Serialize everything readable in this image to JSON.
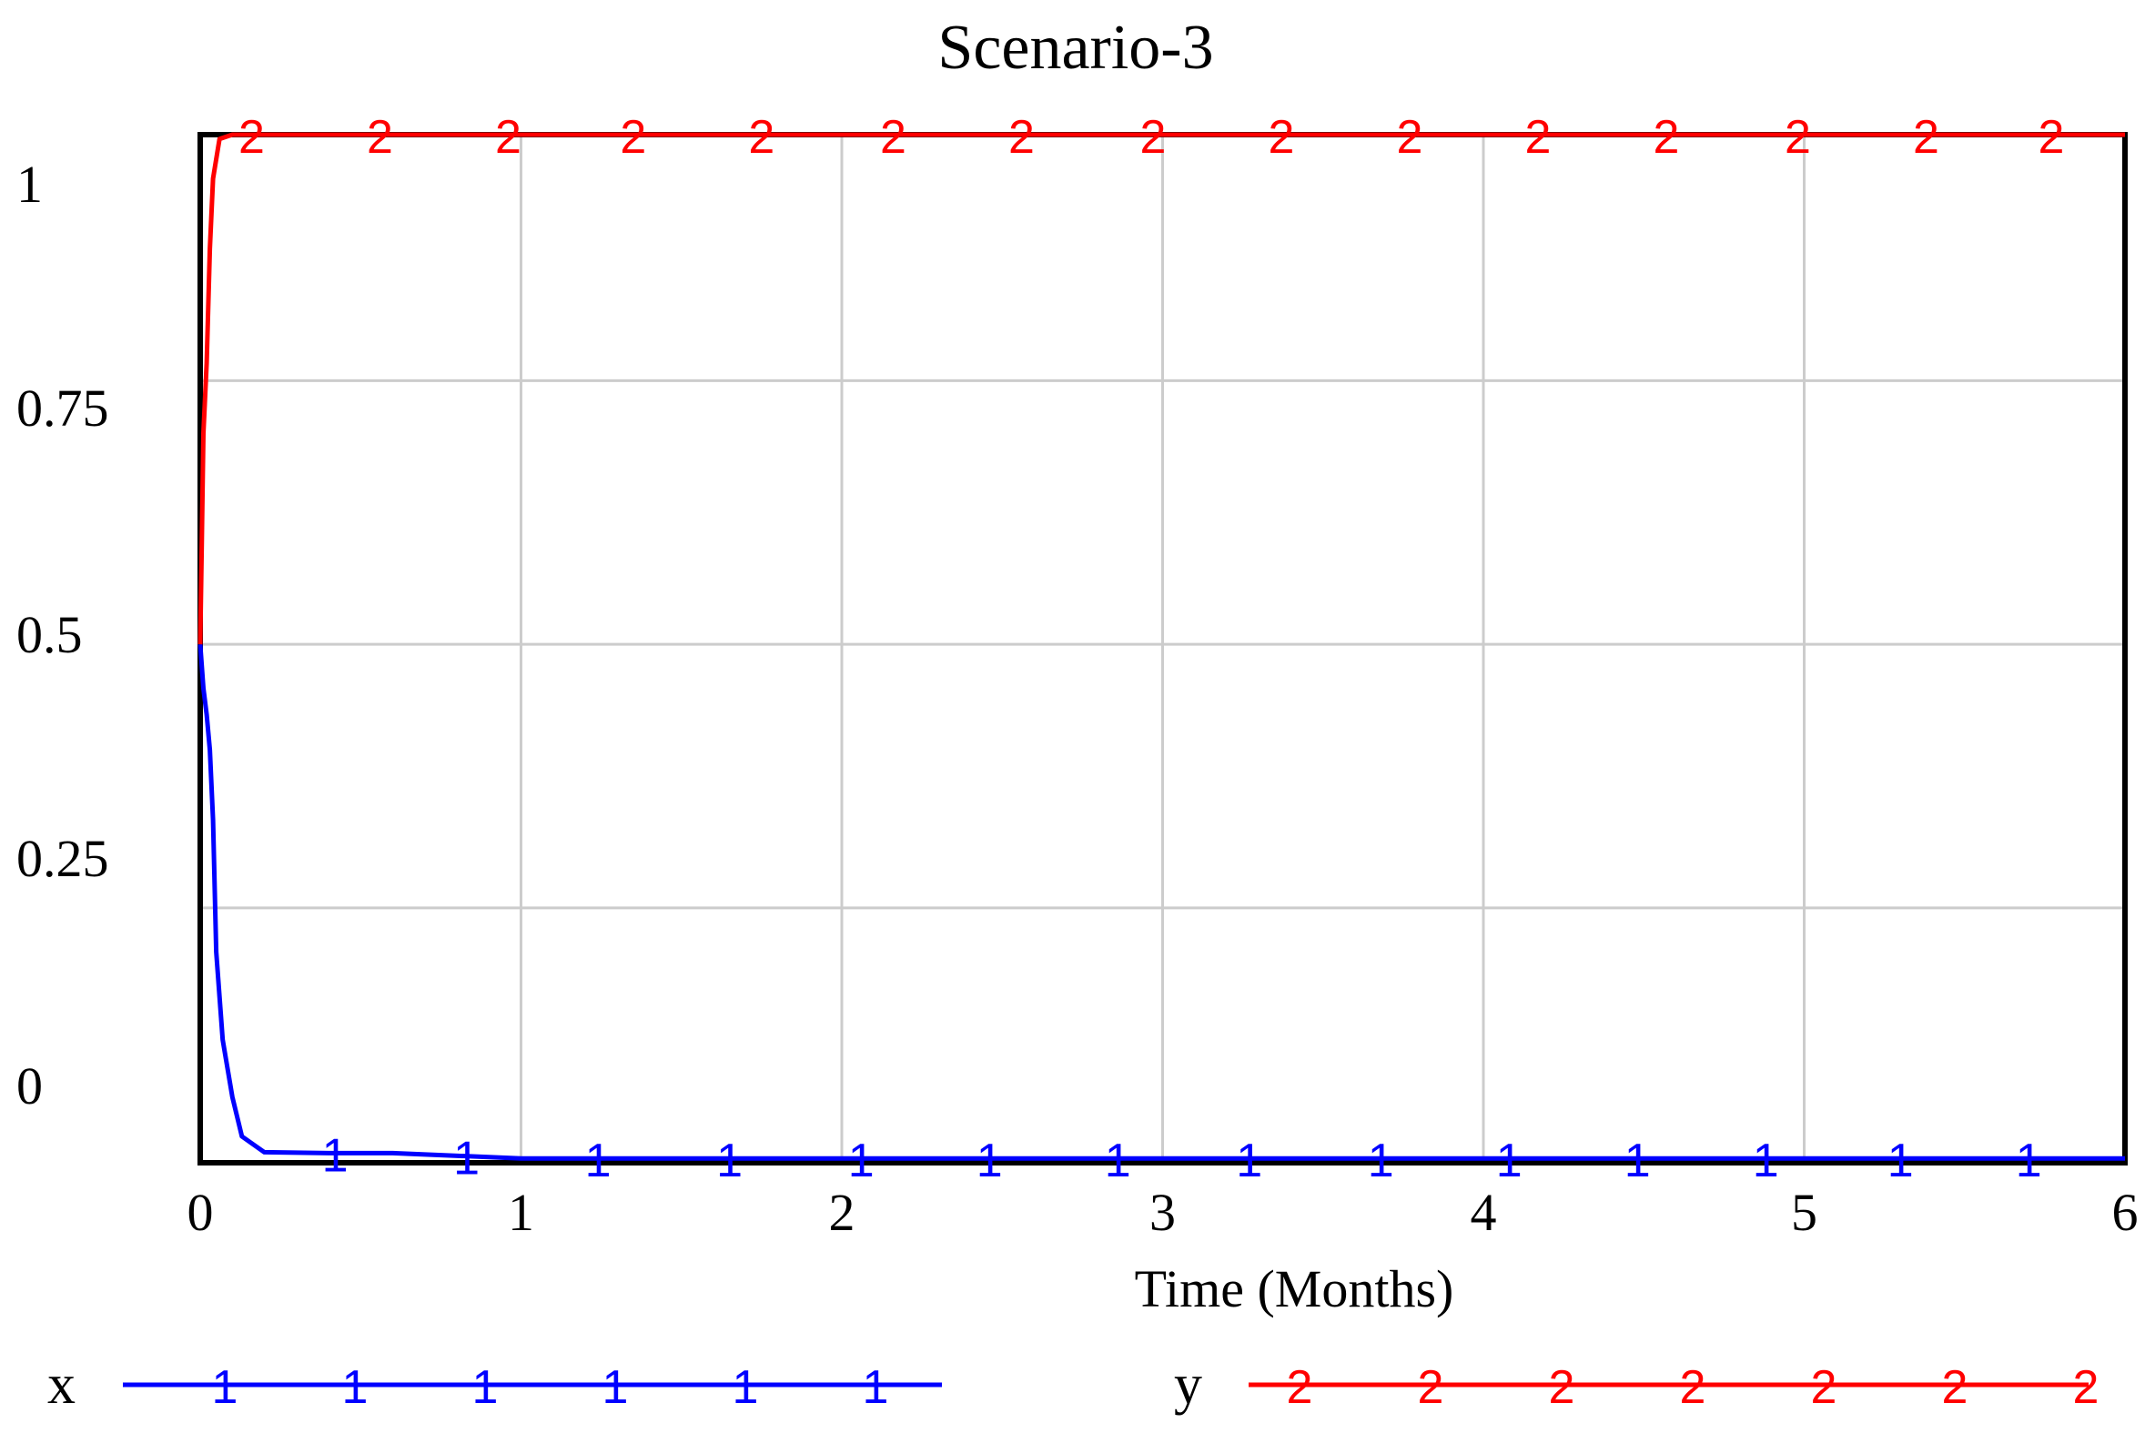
{
  "chart_data": {
    "type": "line",
    "title": "Scenario-3",
    "xlabel": "Time (Months)",
    "ylabel": "",
    "xlim": [
      0,
      6
    ],
    "ylim": [
      -0.09,
      1.08
    ],
    "x_ticks": [
      0,
      1,
      2,
      3,
      4,
      5,
      6
    ],
    "x_tick_labels": [
      "0",
      "1",
      "2",
      "3",
      "4",
      "5",
      "6"
    ],
    "y_ticks": [
      0,
      0.25,
      0.5,
      0.75,
      1
    ],
    "y_tick_labels": [
      "0",
      "0.25",
      "0.5",
      "0.75",
      "1"
    ],
    "y_gridlines": [
      0.2,
      0.5,
      0.8
    ],
    "grid": true,
    "legend_position": "bottom",
    "series": [
      {
        "name": "x",
        "marker_label": "1",
        "color": "#0000ff",
        "x": [
          0,
          0.01,
          0.02,
          0.03,
          0.04,
          0.05,
          0.07,
          0.1,
          0.13,
          0.2,
          0.4,
          0.6,
          1,
          2,
          3,
          4,
          5,
          6
        ],
        "y": [
          0.5,
          0.45,
          0.42,
          0.38,
          0.3,
          0.15,
          0.05,
          -0.015,
          -0.06,
          -0.078,
          -0.079,
          -0.079,
          -0.085,
          -0.085,
          -0.085,
          -0.085,
          -0.085,
          -0.085
        ],
        "marker_x": [
          0.42,
          0.83,
          1.24,
          1.65,
          2.06,
          2.46,
          2.86,
          3.27,
          3.68,
          4.08,
          4.48,
          4.88,
          5.3,
          5.7
        ]
      },
      {
        "name": "y",
        "marker_label": "2",
        "color": "#ff0000",
        "x": [
          0,
          0.005,
          0.01,
          0.02,
          0.03,
          0.04,
          0.06,
          0.1,
          1,
          2,
          3,
          4,
          5,
          6
        ],
        "y": [
          0.5,
          0.62,
          0.74,
          0.82,
          0.95,
          1.03,
          1.075,
          1.08,
          1.08,
          1.08,
          1.08,
          1.08,
          1.08,
          1.08
        ],
        "marker_x": [
          0.16,
          0.56,
          0.96,
          1.35,
          1.75,
          2.16,
          2.56,
          2.97,
          3.37,
          3.77,
          4.17,
          4.57,
          4.98,
          5.38,
          5.77
        ]
      }
    ],
    "legend": [
      {
        "name": "x",
        "marker_label": "1",
        "marker_count": 6
      },
      {
        "name": "y",
        "marker_label": "2",
        "marker_count": 7
      }
    ]
  }
}
